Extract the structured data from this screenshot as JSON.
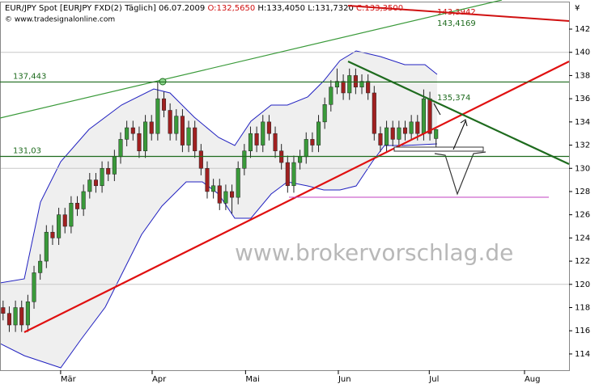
{
  "header": {
    "instrument": "EUR/JPY Spot [EURJPY FXD(2)  Täglich] 06.07.2009",
    "open": "O:132,5650",
    "high": "H:133,4050",
    "low": "L:131,7320",
    "close": "C:133,3500"
  },
  "source": "© www.tradesignalonline.com",
  "watermark": "www.brokervorschlag.de",
  "currency": "¥",
  "chart_data": {
    "type": "candlestick",
    "up_color": "#3a9a3a",
    "down_color": "#a02020",
    "open": [
      118,
      117.5,
      116.5,
      118,
      116.5,
      118.5,
      121,
      122,
      124.5,
      124,
      126,
      125,
      127,
      126.5,
      128,
      129,
      128.5,
      130,
      129.5,
      131,
      132.5,
      133.5,
      133,
      131.5,
      134,
      133,
      136,
      135,
      133,
      134.5,
      132,
      133.5,
      131.5,
      130,
      128,
      128.5,
      127,
      128,
      127.5,
      130,
      131.5,
      133,
      132,
      134,
      133,
      131.5,
      130.5,
      128.5,
      130.5,
      131,
      132.5,
      132,
      134,
      135.5,
      137,
      137.5,
      136.5,
      138,
      137,
      137.5,
      136.5,
      133,
      132,
      133.5,
      132.5,
      133.5,
      133,
      134,
      133,
      136,
      132.565
    ],
    "high": [
      118.6,
      118.1,
      118.6,
      118.6,
      119.1,
      121.6,
      122.6,
      125.1,
      125.1,
      126.6,
      126.6,
      127.6,
      127.6,
      128.6,
      129.6,
      129.6,
      130.6,
      130.6,
      131.6,
      133.1,
      134.1,
      134.1,
      133.6,
      134.6,
      134.6,
      137.4,
      136.6,
      135.6,
      135.1,
      135.1,
      134.1,
      134.1,
      132.1,
      130.6,
      129.1,
      129.1,
      128.6,
      128.6,
      130.6,
      132.1,
      133.6,
      133.6,
      134.6,
      134.6,
      133.6,
      132.1,
      131.1,
      131.1,
      131.6,
      133.1,
      133.1,
      134.6,
      136.1,
      137.6,
      138.6,
      138.1,
      138.6,
      138.6,
      138.1,
      138.1,
      137.1,
      133.6,
      134.1,
      134.1,
      134.1,
      134.1,
      134.6,
      134.6,
      136.8,
      136.6,
      133.405
    ],
    "low": [
      116.9,
      115.9,
      115.9,
      115.9,
      115.9,
      117.9,
      120.4,
      121.4,
      123.4,
      123.4,
      124.4,
      124.4,
      125.9,
      125.9,
      127.4,
      127.9,
      127.9,
      128.9,
      128.9,
      130.4,
      131.9,
      132.4,
      130.9,
      130.9,
      132.4,
      132.4,
      134.4,
      132.4,
      132.4,
      131.4,
      131.4,
      130.9,
      129.4,
      127.4,
      127.4,
      126.4,
      126.4,
      126.1,
      126.9,
      129.4,
      130.9,
      131.4,
      131.4,
      132.4,
      130.9,
      129.9,
      127.9,
      127.9,
      129.9,
      130.4,
      131.4,
      131.4,
      133.4,
      134.9,
      136.4,
      135.9,
      135.9,
      136.4,
      136.4,
      135.9,
      132.4,
      131.4,
      131.4,
      131.9,
      131.9,
      132.4,
      132.4,
      132.4,
      132.4,
      132.4,
      131.732
    ],
    "close": [
      117.5,
      116.5,
      118,
      116.5,
      118.5,
      121,
      122,
      124.5,
      124,
      126,
      125,
      127,
      126.5,
      128,
      129,
      128.5,
      130,
      129.5,
      131,
      132.5,
      133.5,
      133,
      131.5,
      134,
      133,
      136,
      135,
      133,
      134.5,
      132,
      133.5,
      131.5,
      130,
      128,
      128.5,
      127,
      128,
      127.5,
      130,
      131.5,
      133,
      132,
      134,
      133,
      131.5,
      130.5,
      128.5,
      130.5,
      131,
      132.5,
      132,
      134,
      135.5,
      137,
      137.5,
      136.5,
      138,
      137,
      137.5,
      136.5,
      133,
      132,
      133.5,
      132.5,
      133.5,
      133,
      134,
      133,
      136,
      133,
      133.35
    ],
    "xlim": [
      -0.5,
      91.5
    ],
    "xticks": [
      {
        "value": 9.3,
        "label": "Mär"
      },
      {
        "value": 24.1,
        "label": "Apr"
      },
      {
        "value": 39.2,
        "label": "Mai"
      },
      {
        "value": 54.2,
        "label": "Jun"
      },
      {
        "value": 68.9,
        "label": "Jul"
      },
      {
        "value": 84.3,
        "label": "Aug"
      }
    ],
    "ylim": [
      112.6,
      144.37
    ],
    "yticks": [
      114,
      116,
      118,
      120,
      122,
      124,
      126,
      128,
      130,
      132,
      134,
      136,
      138,
      140,
      142
    ],
    "grid": [
      120,
      130,
      140
    ],
    "levels": [
      {
        "value": 137.443,
        "label": "137,443",
        "color": "#1e6b1e"
      },
      {
        "value": 131.03,
        "label": "131,03",
        "color": "#1e6b1e"
      }
    ],
    "annotations": [
      "135,374",
      "143,3942",
      "143,4169"
    ]
  }
}
